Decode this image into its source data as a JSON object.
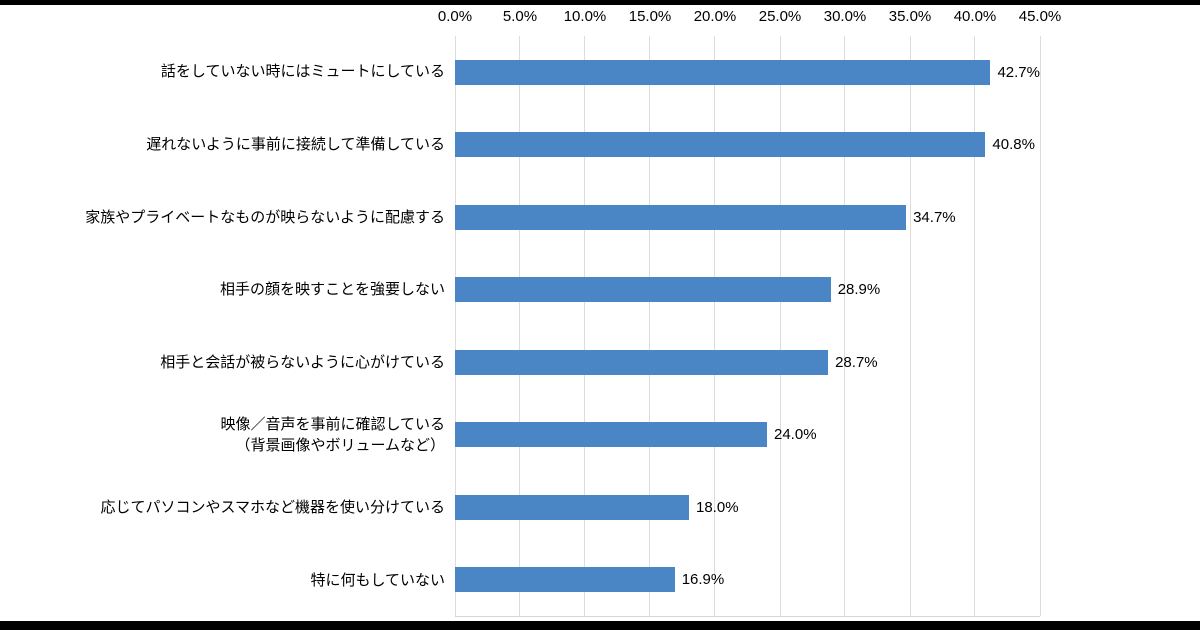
{
  "frame": {
    "background_color": "#ffffff",
    "letterbox_color": "#000000"
  },
  "chart_data": {
    "type": "bar",
    "orientation": "horizontal",
    "title": "",
    "xlabel": "",
    "ylabel": "",
    "xlim": [
      0,
      45
    ],
    "grid": true,
    "legend": "none",
    "bar_color": "#4a86c5",
    "gridline_color": "#dcdcdc",
    "x_ticks": [
      "0.0%",
      "5.0%",
      "10.0%",
      "15.0%",
      "20.0%",
      "25.0%",
      "30.0%",
      "35.0%",
      "40.0%",
      "45.0%"
    ],
    "categories": [
      "話をしていない時にはミュートにしている",
      "遅れないように事前に接続して準備している",
      "家族やプライベートなものが映らないように配慮する",
      "相手の顔を映すことを強要しない",
      "相手と会話が被らないように心がけている",
      "映像／音声を事前に確認している\n（背景画像やボリュームなど）",
      "応じてパソコンやスマホなど機器を使い分けている",
      "特に何もしていない"
    ],
    "values": [
      42.7,
      40.8,
      34.7,
      28.9,
      28.7,
      24.0,
      18.0,
      16.9
    ],
    "value_labels": [
      "42.7%",
      "40.8%",
      "34.7%",
      "28.9%",
      "28.7%",
      "24.0%",
      "18.0%",
      "16.9%"
    ]
  }
}
